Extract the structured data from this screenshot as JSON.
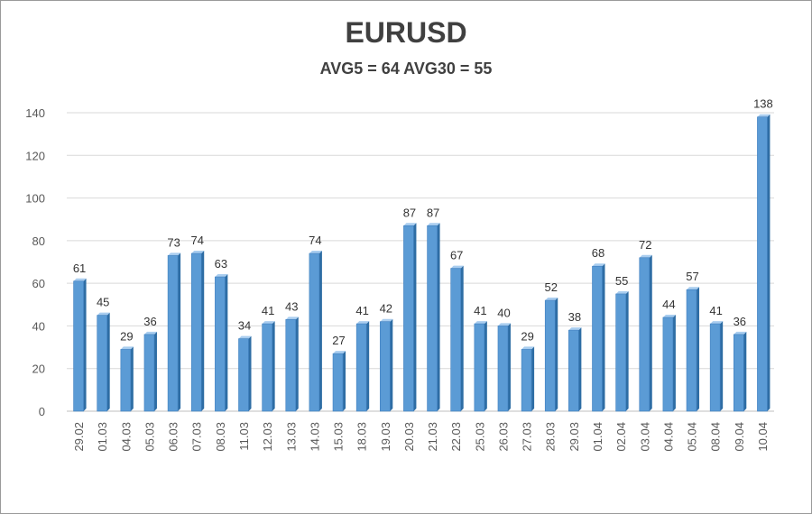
{
  "chart_data": {
    "type": "bar",
    "title": "EURUSD",
    "subtitle": "AVG5 = 64 AVG30 = 55",
    "categories": [
      "29.02",
      "01.03",
      "04.03",
      "05.03",
      "06.03",
      "07.03",
      "08.03",
      "11.03",
      "12.03",
      "13.03",
      "14.03",
      "15.03",
      "18.03",
      "19.03",
      "20.03",
      "21.03",
      "22.03",
      "25.03",
      "26.03",
      "27.03",
      "28.03",
      "29.03",
      "01.04",
      "02.04",
      "03.04",
      "04.04",
      "05.04",
      "08.04",
      "09.04",
      "10.04"
    ],
    "values": [
      61,
      45,
      29,
      36,
      73,
      74,
      63,
      34,
      41,
      43,
      74,
      27,
      41,
      42,
      87,
      87,
      67,
      41,
      40,
      29,
      52,
      38,
      68,
      55,
      72,
      44,
      57,
      41,
      36,
      138
    ],
    "ylim": [
      0,
      140
    ],
    "yticks": [
      0,
      20,
      40,
      60,
      80,
      100,
      120,
      140
    ],
    "grid": true,
    "legend": "none",
    "bar_color": "#5b9bd5",
    "bar_side_color": "#2e6da4",
    "bar_top_color": "#a9cdef"
  }
}
